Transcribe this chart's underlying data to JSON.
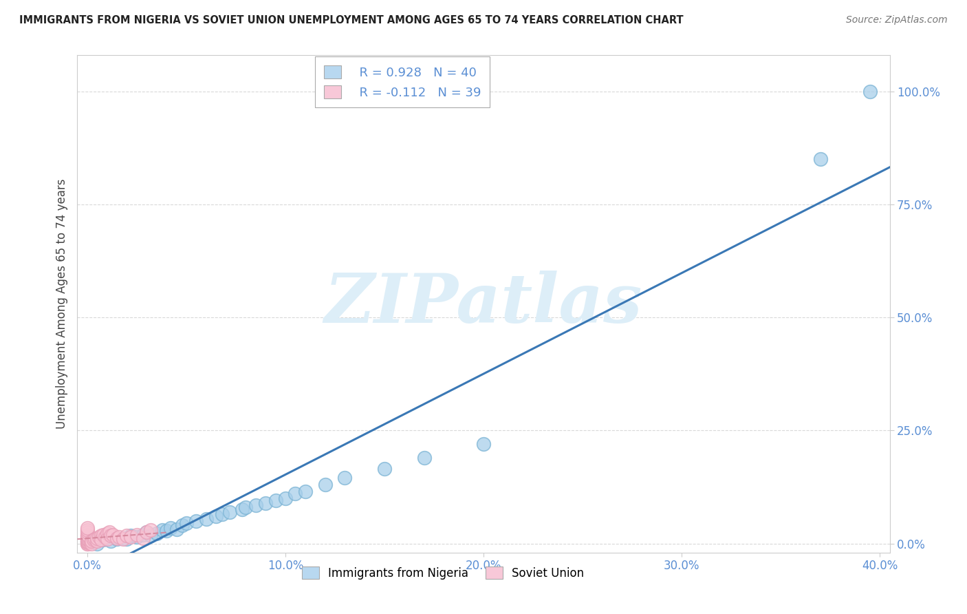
{
  "title": "IMMIGRANTS FROM NIGERIA VS SOVIET UNION UNEMPLOYMENT AMONG AGES 65 TO 74 YEARS CORRELATION CHART",
  "source": "Source: ZipAtlas.com",
  "ylabel": "Unemployment Among Ages 65 to 74 years",
  "xlim": [
    -0.005,
    0.405
  ],
  "ylim": [
    -0.02,
    1.08
  ],
  "xtick_values": [
    0.0,
    0.1,
    0.2,
    0.3,
    0.4
  ],
  "ytick_values": [
    0.0,
    0.25,
    0.5,
    0.75,
    1.0
  ],
  "nigeria_R": "0.928",
  "nigeria_N": "40",
  "soviet_R": "-0.112",
  "soviet_N": "39",
  "nigeria_scatter_color": "#a8cfea",
  "nigeria_scatter_edge": "#7ab3d4",
  "soviet_scatter_color": "#f8c4d4",
  "soviet_scatter_edge": "#e8a0b8",
  "nigeria_line_color": "#3a78b5",
  "soviet_line_color": "#d4859a",
  "legend_color_nigeria": "#b8d8f0",
  "legend_color_soviet": "#f8c8d8",
  "tick_color": "#5b8fd4",
  "watermark_text": "ZIPatlas",
  "watermark_color": "#ddeef8",
  "nigeria_x": [
    0.0,
    0.005,
    0.008,
    0.01,
    0.012,
    0.015,
    0.018,
    0.02,
    0.022,
    0.025,
    0.028,
    0.03,
    0.032,
    0.035,
    0.038,
    0.04,
    0.042,
    0.045,
    0.048,
    0.05,
    0.055,
    0.06,
    0.065,
    0.068,
    0.072,
    0.078,
    0.08,
    0.085,
    0.09,
    0.095,
    0.1,
    0.105,
    0.11,
    0.12,
    0.13,
    0.15,
    0.17,
    0.2,
    0.37,
    0.395
  ],
  "nigeria_y": [
    0.005,
    0.0,
    0.008,
    0.015,
    0.005,
    0.01,
    0.012,
    0.01,
    0.018,
    0.015,
    0.02,
    0.025,
    0.018,
    0.022,
    0.03,
    0.028,
    0.035,
    0.032,
    0.04,
    0.045,
    0.05,
    0.055,
    0.06,
    0.065,
    0.07,
    0.075,
    0.08,
    0.085,
    0.09,
    0.095,
    0.1,
    0.11,
    0.115,
    0.13,
    0.145,
    0.165,
    0.19,
    0.22,
    0.85,
    1.0
  ],
  "soviet_x": [
    0.0,
    0.0,
    0.0,
    0.0,
    0.0,
    0.0,
    0.0,
    0.0,
    0.0,
    0.0,
    0.0,
    0.0,
    0.0,
    0.0,
    0.002,
    0.002,
    0.003,
    0.004,
    0.005,
    0.005,
    0.006,
    0.007,
    0.007,
    0.008,
    0.009,
    0.01,
    0.01,
    0.011,
    0.012,
    0.013,
    0.015,
    0.016,
    0.018,
    0.02,
    0.022,
    0.025,
    0.028,
    0.03,
    0.032
  ],
  "soviet_y": [
    0.0,
    0.0,
    0.002,
    0.004,
    0.005,
    0.008,
    0.01,
    0.012,
    0.015,
    0.018,
    0.02,
    0.025,
    0.03,
    0.035,
    0.0,
    0.005,
    0.008,
    0.01,
    0.005,
    0.012,
    0.015,
    0.018,
    0.008,
    0.02,
    0.015,
    0.022,
    0.01,
    0.025,
    0.018,
    0.02,
    0.012,
    0.015,
    0.01,
    0.018,
    0.015,
    0.02,
    0.012,
    0.025,
    0.03
  ]
}
